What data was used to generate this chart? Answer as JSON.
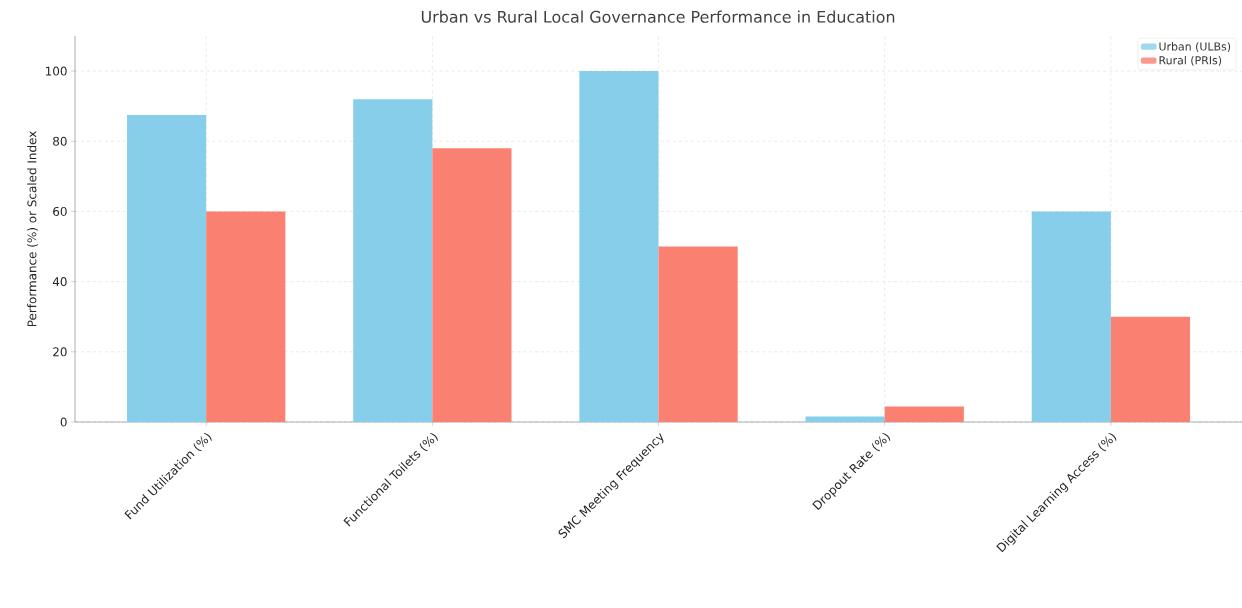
{
  "chart_data": {
    "type": "bar",
    "title": "Urban vs Rural Local Governance Performance in Education",
    "ylabel": "Performance (%) or Scaled Index",
    "categories": [
      "Fund Utilization (%)",
      "Functional Toilets (%)",
      "SMC Meeting Frequency",
      "Dropout Rate (%)",
      "Digital Learning Access (%)"
    ],
    "series": [
      {
        "name": "Urban (ULBs)",
        "color": "#87ceeb",
        "values": [
          87.5,
          92,
          100,
          1.6,
          60
        ]
      },
      {
        "name": "Rural (PRIs)",
        "color": "#fa8072",
        "values": [
          60,
          78,
          50,
          4.4,
          30
        ]
      }
    ],
    "ylim": [
      0,
      110
    ],
    "yticks": [
      0,
      20,
      40,
      60,
      80,
      100
    ],
    "grid": true,
    "legend": "top right"
  }
}
